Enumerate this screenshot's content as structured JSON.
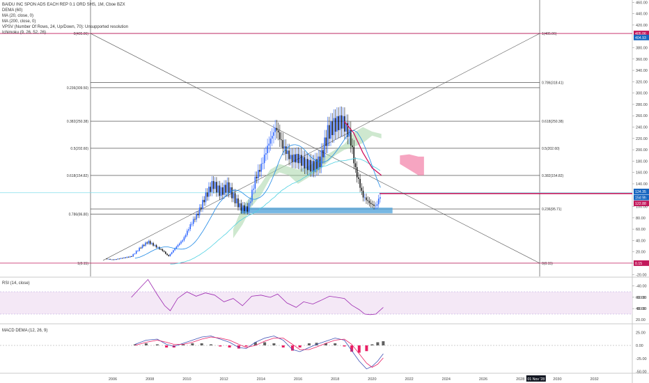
{
  "legend": {
    "symbol": "BAIDU INC SPON ADS EACH REP 0.1 ORD SHS, 1M, Cboe BZX",
    "indicators": [
      "DEMA (60)",
      "MA (20, close, 0)",
      "MA (200, close, 0)",
      "VPSV (Number Of Rows, 24, Up/Down, 70): Unsupported resolution",
      "Ichimoku (9, 26, 52, 26)"
    ]
  },
  "rsi_label": "RSI (14, close)",
  "macd_label": "MACD DEMA (12, 26, 9)",
  "colors": {
    "up": "#2962ff",
    "down": "#111111",
    "dema": "#d0105c",
    "ma20": "#1e88e5",
    "ma200": "#4dd0e1",
    "fib": "#333333",
    "rsi": "#9c27b0",
    "macd": "#3f51b5",
    "signal": "#e91e63",
    "cloud_up": "#a5d6a7",
    "cloud_down": "#f48fb1",
    "box": "#4a9fd8"
  },
  "chart_data": [
    {
      "type": "candlestick",
      "title": "BAIDU INC SPON ADS EACH REP 0.1 ORD SHS, 1M, Cboe BZX",
      "x_tick_labels": [
        "2006",
        "2008",
        "2010",
        "2012",
        "2014",
        "2016",
        "2018",
        "2020",
        "2022",
        "2024",
        "2026",
        "2028",
        "2030",
        "2032"
      ],
      "y_tick_labels": [
        "460.00",
        "440.00",
        "420.00",
        "380.00",
        "360.00",
        "340.00",
        "320.00",
        "300.00",
        "280.00",
        "260.00",
        "240.00",
        "220.00",
        "200.00",
        "180.00",
        "160.00",
        "140.00",
        "100.00",
        "80.00",
        "60.00",
        "40.00",
        "20.00",
        "0.00",
        "-20.00",
        "-40.00",
        "-60.00",
        "-80.00"
      ],
      "ylim": [
        -80,
        465
      ],
      "price_badges": [
        "405.06",
        "404.93",
        "124.35",
        "15d 9h",
        "122.88",
        "0.15"
      ],
      "cursor_date": "01 Nov '28",
      "monthly_close": [
        {
          "year": 2005.6,
          "close": 8
        },
        {
          "year": 2006.0,
          "close": 6
        },
        {
          "year": 2006.5,
          "close": 9
        },
        {
          "year": 2007.0,
          "close": 12
        },
        {
          "year": 2007.5,
          "close": 28
        },
        {
          "year": 2007.9,
          "close": 38
        },
        {
          "year": 2008.3,
          "close": 30
        },
        {
          "year": 2008.7,
          "close": 22
        },
        {
          "year": 2009.0,
          "close": 12
        },
        {
          "year": 2009.4,
          "close": 28
        },
        {
          "year": 2009.8,
          "close": 42
        },
        {
          "year": 2010.2,
          "close": 68
        },
        {
          "year": 2010.6,
          "close": 88
        },
        {
          "year": 2011.0,
          "close": 118
        },
        {
          "year": 2011.4,
          "close": 140
        },
        {
          "year": 2011.8,
          "close": 125
        },
        {
          "year": 2012.2,
          "close": 135
        },
        {
          "year": 2012.6,
          "close": 112
        },
        {
          "year": 2012.9,
          "close": 98
        },
        {
          "year": 2013.3,
          "close": 95
        },
        {
          "year": 2013.7,
          "close": 150
        },
        {
          "year": 2014.0,
          "close": 170
        },
        {
          "year": 2014.4,
          "close": 210
        },
        {
          "year": 2014.8,
          "close": 240
        },
        {
          "year": 2015.2,
          "close": 205
        },
        {
          "year": 2015.6,
          "close": 185
        },
        {
          "year": 2016.0,
          "close": 185
        },
        {
          "year": 2016.4,
          "close": 175
        },
        {
          "year": 2016.8,
          "close": 170
        },
        {
          "year": 2017.2,
          "close": 180
        },
        {
          "year": 2017.6,
          "close": 230
        },
        {
          "year": 2018.0,
          "close": 245
        },
        {
          "year": 2018.4,
          "close": 250
        },
        {
          "year": 2018.8,
          "close": 225
        },
        {
          "year": 2019.1,
          "close": 165
        },
        {
          "year": 2019.5,
          "close": 118
        },
        {
          "year": 2019.9,
          "close": 105
        },
        {
          "year": 2020.2,
          "close": 100
        },
        {
          "year": 2020.5,
          "close": 124
        }
      ],
      "fib_left": [
        {
          "label": "0(405.06)",
          "value": 405.06
        },
        {
          "label": "0.236(309.50)",
          "value": 309.5
        },
        {
          "label": "0.382(250.38)",
          "value": 250.38
        },
        {
          "label": "0.5(202.60)",
          "value": 202.6
        },
        {
          "label": "0.618(154.82)",
          "value": 154.82
        },
        {
          "label": "0.786(86.80)",
          "value": 86.8
        },
        {
          "label": "1(0.15)",
          "value": 0.15
        }
      ],
      "fib_right": [
        {
          "label": "1(405.06)",
          "value": 405.06
        },
        {
          "label": "0.786(318.41)",
          "value": 318.41
        },
        {
          "label": "0.618(250.38)",
          "value": 250.38
        },
        {
          "label": "0.5(202.60)",
          "value": 202.6
        },
        {
          "label": "0.382(154.82)",
          "value": 154.82
        },
        {
          "label": "0.236(95.71)",
          "value": 95.71
        },
        {
          "label": "0(0.15)",
          "value": 0.15
        }
      ]
    },
    {
      "type": "line",
      "title": "RSI (14, close)",
      "y_tick_labels": [
        "60.00",
        "40.00",
        "20.00"
      ],
      "ylim": [
        15,
        90
      ],
      "band": [
        30,
        70
      ],
      "points": [
        {
          "year": 2007.0,
          "value": 60
        },
        {
          "year": 2007.5,
          "value": 78
        },
        {
          "year": 2007.9,
          "value": 92
        },
        {
          "year": 2008.4,
          "value": 65
        },
        {
          "year": 2008.8,
          "value": 45
        },
        {
          "year": 2009.1,
          "value": 36
        },
        {
          "year": 2009.5,
          "value": 58
        },
        {
          "year": 2010.0,
          "value": 70
        },
        {
          "year": 2010.5,
          "value": 62
        },
        {
          "year": 2011.0,
          "value": 68
        },
        {
          "year": 2011.5,
          "value": 64
        },
        {
          "year": 2012.0,
          "value": 52
        },
        {
          "year": 2012.5,
          "value": 58
        },
        {
          "year": 2013.0,
          "value": 45
        },
        {
          "year": 2013.5,
          "value": 62
        },
        {
          "year": 2014.0,
          "value": 64
        },
        {
          "year": 2014.5,
          "value": 60
        },
        {
          "year": 2014.9,
          "value": 66
        },
        {
          "year": 2015.4,
          "value": 50
        },
        {
          "year": 2015.9,
          "value": 42
        },
        {
          "year": 2016.3,
          "value": 52
        },
        {
          "year": 2016.8,
          "value": 48
        },
        {
          "year": 2017.2,
          "value": 54
        },
        {
          "year": 2017.7,
          "value": 62
        },
        {
          "year": 2018.1,
          "value": 60
        },
        {
          "year": 2018.5,
          "value": 58
        },
        {
          "year": 2018.9,
          "value": 46
        },
        {
          "year": 2019.3,
          "value": 38
        },
        {
          "year": 2019.6,
          "value": 30
        },
        {
          "year": 2019.9,
          "value": 29
        },
        {
          "year": 2020.2,
          "value": 30
        },
        {
          "year": 2020.6,
          "value": 42
        }
      ]
    },
    {
      "type": "bar",
      "title": "MACD DEMA (12, 26, 9)",
      "y_tick_labels": [
        "25.00",
        "0.00",
        "-25.00",
        "-50.00"
      ],
      "ylim": [
        -62,
        38
      ],
      "macd": [
        {
          "year": 2007.2,
          "value": 2
        },
        {
          "year": 2007.8,
          "value": 10
        },
        {
          "year": 2008.4,
          "value": 12
        },
        {
          "year": 2008.9,
          "value": 2
        },
        {
          "year": 2009.3,
          "value": -2
        },
        {
          "year": 2009.8,
          "value": 4
        },
        {
          "year": 2010.3,
          "value": 10
        },
        {
          "year": 2010.8,
          "value": 16
        },
        {
          "year": 2011.3,
          "value": 18
        },
        {
          "year": 2011.8,
          "value": 12
        },
        {
          "year": 2012.3,
          "value": 6
        },
        {
          "year": 2012.8,
          "value": -4
        },
        {
          "year": 2013.2,
          "value": -6
        },
        {
          "year": 2013.7,
          "value": 6
        },
        {
          "year": 2014.2,
          "value": 14
        },
        {
          "year": 2014.7,
          "value": 18
        },
        {
          "year": 2015.2,
          "value": 10
        },
        {
          "year": 2015.7,
          "value": -8
        },
        {
          "year": 2016.1,
          "value": -12
        },
        {
          "year": 2016.6,
          "value": -4
        },
        {
          "year": 2017.0,
          "value": 2
        },
        {
          "year": 2017.5,
          "value": 8
        },
        {
          "year": 2018.0,
          "value": 14
        },
        {
          "year": 2018.5,
          "value": 10
        },
        {
          "year": 2018.9,
          "value": -10
        },
        {
          "year": 2019.3,
          "value": -30
        },
        {
          "year": 2019.7,
          "value": -45
        },
        {
          "year": 2020.0,
          "value": -40
        },
        {
          "year": 2020.3,
          "value": -30
        },
        {
          "year": 2020.6,
          "value": -16
        }
      ],
      "signal": [
        {
          "year": 2007.2,
          "value": 0
        },
        {
          "year": 2007.8,
          "value": 6
        },
        {
          "year": 2008.4,
          "value": 10
        },
        {
          "year": 2008.9,
          "value": 6
        },
        {
          "year": 2009.3,
          "value": 2
        },
        {
          "year": 2009.8,
          "value": 2
        },
        {
          "year": 2010.3,
          "value": 6
        },
        {
          "year": 2010.8,
          "value": 12
        },
        {
          "year": 2011.3,
          "value": 16
        },
        {
          "year": 2011.8,
          "value": 14
        },
        {
          "year": 2012.3,
          "value": 10
        },
        {
          "year": 2012.8,
          "value": 2
        },
        {
          "year": 2013.2,
          "value": -4
        },
        {
          "year": 2013.7,
          "value": 0
        },
        {
          "year": 2014.2,
          "value": 8
        },
        {
          "year": 2014.7,
          "value": 14
        },
        {
          "year": 2015.2,
          "value": 14
        },
        {
          "year": 2015.7,
          "value": 2
        },
        {
          "year": 2016.1,
          "value": -8
        },
        {
          "year": 2016.6,
          "value": -8
        },
        {
          "year": 2017.0,
          "value": -3
        },
        {
          "year": 2017.5,
          "value": 4
        },
        {
          "year": 2018.0,
          "value": 10
        },
        {
          "year": 2018.5,
          "value": 12
        },
        {
          "year": 2018.9,
          "value": 2
        },
        {
          "year": 2019.3,
          "value": -16
        },
        {
          "year": 2019.7,
          "value": -34
        },
        {
          "year": 2020.0,
          "value": -42
        },
        {
          "year": 2020.3,
          "value": -36
        },
        {
          "year": 2020.6,
          "value": -24
        }
      ],
      "histogram": [
        {
          "year": 2007.2,
          "value": 2
        },
        {
          "year": 2007.8,
          "value": 4
        },
        {
          "year": 2008.4,
          "value": 2
        },
        {
          "year": 2008.9,
          "value": -4
        },
        {
          "year": 2009.3,
          "value": -4
        },
        {
          "year": 2009.8,
          "value": 2
        },
        {
          "year": 2010.3,
          "value": 4
        },
        {
          "year": 2010.8,
          "value": 4
        },
        {
          "year": 2011.3,
          "value": 2
        },
        {
          "year": 2011.8,
          "value": -2
        },
        {
          "year": 2012.3,
          "value": -4
        },
        {
          "year": 2012.8,
          "value": -6
        },
        {
          "year": 2013.2,
          "value": -2
        },
        {
          "year": 2013.7,
          "value": 6
        },
        {
          "year": 2014.2,
          "value": 6
        },
        {
          "year": 2014.7,
          "value": 4
        },
        {
          "year": 2015.2,
          "value": -4
        },
        {
          "year": 2015.7,
          "value": -10
        },
        {
          "year": 2016.1,
          "value": -4
        },
        {
          "year": 2016.6,
          "value": 4
        },
        {
          "year": 2017.0,
          "value": 5
        },
        {
          "year": 2017.5,
          "value": 4
        },
        {
          "year": 2018.0,
          "value": 4
        },
        {
          "year": 2018.5,
          "value": -2
        },
        {
          "year": 2018.9,
          "value": -12
        },
        {
          "year": 2019.3,
          "value": -14
        },
        {
          "year": 2019.7,
          "value": -11
        },
        {
          "year": 2020.0,
          "value": 2
        },
        {
          "year": 2020.3,
          "value": 6
        },
        {
          "year": 2020.6,
          "value": 8
        }
      ]
    }
  ]
}
